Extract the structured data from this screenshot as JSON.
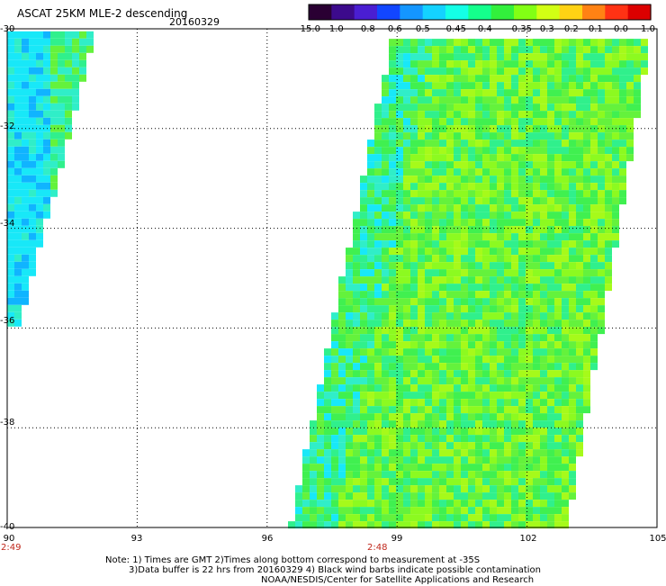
{
  "header": {
    "title": "ASCAT 25KM MLE-2 descending",
    "date": "20160329"
  },
  "colorbar": {
    "labels": [
      "-15.0",
      "-1.0",
      "-0.8",
      "-0.6",
      "-0.5",
      "-0.45",
      "-0.4",
      "-0.35",
      "-0.3",
      "-0.2",
      "-0.1",
      "0.0",
      "1.0"
    ],
    "colors": [
      "#2a0033",
      "#3c0a8c",
      "#4a1ed2",
      "#1246ff",
      "#1496ff",
      "#14d2ff",
      "#14ffe6",
      "#14ff8c",
      "#32f03c",
      "#82ff14",
      "#d2ff14",
      "#ffd214",
      "#ff8214",
      "#ff3214",
      "#dc0000"
    ]
  },
  "axes": {
    "lat_labels": [
      "-30",
      "-32",
      "-34",
      "-36",
      "-38",
      "-40"
    ],
    "lon_labels": [
      "90",
      "93",
      "96",
      "99",
      "102",
      "105"
    ],
    "lat_range": [
      -40,
      -30
    ],
    "lon_range": [
      90,
      105
    ]
  },
  "pass_times": [
    {
      "label": "2:49",
      "lon": 90
    },
    {
      "label": "2:48",
      "lon": 99.5
    }
  ],
  "swaths": [
    {
      "name": "western-swath",
      "top_lat": -30.05,
      "bottom_lat": -35.9,
      "top_lon": [
        90.05,
        91.95
      ],
      "bottom_lon": [
        90.05,
        90.2
      ]
    },
    {
      "name": "eastern-swath",
      "top_lat": -30.2,
      "bottom_lat": -40.0,
      "top_lon": [
        98.95,
        104.75
      ],
      "bottom_lon": [
        96.6,
        102.85
      ]
    }
  ],
  "notes": {
    "line1": "Note: 1) Times are GMT 2)Times along bottom correspond to measurement at -35S",
    "line2": "3)Data buffer is 22 hrs from 20160329 4) Black wind barbs indicate possible contamination",
    "line3": "NOAA/NESDIS/Center for Satellite Applications and Research"
  }
}
